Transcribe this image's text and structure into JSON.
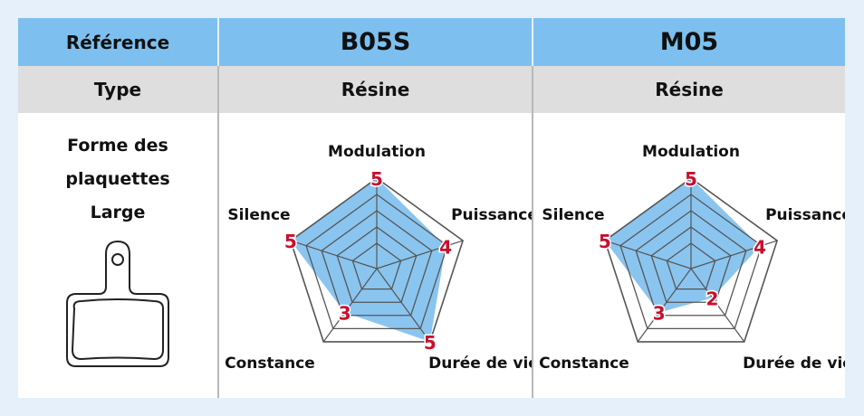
{
  "header": {
    "label": "Référence",
    "products": [
      "B05S",
      "M05"
    ]
  },
  "type_row": {
    "label": "Type",
    "values": [
      "Résine",
      "Résine"
    ]
  },
  "shape": {
    "lines": [
      "Forme des",
      "plaquettes",
      "Large"
    ],
    "icon": "brake-pad-icon"
  },
  "colors": {
    "header": "#7dc0ef",
    "type_row": "#dedede",
    "fill": "#7dbfee",
    "value_label": "#c8102e",
    "page": "#e6f0fa"
  },
  "chart_data": [
    {
      "type": "radar",
      "product": "B05S",
      "axes": [
        "Modulation",
        "Puissance",
        "Durée de vie",
        "Constance",
        "Silence"
      ],
      "values": [
        5,
        4,
        5,
        3,
        5
      ],
      "range": [
        0,
        5
      ]
    },
    {
      "type": "radar",
      "product": "M05",
      "axes": [
        "Modulation",
        "Puissance",
        "Durée de vie",
        "Constance",
        "Silence"
      ],
      "values": [
        5,
        4,
        2,
        3,
        5
      ],
      "range": [
        0,
        5
      ]
    }
  ]
}
